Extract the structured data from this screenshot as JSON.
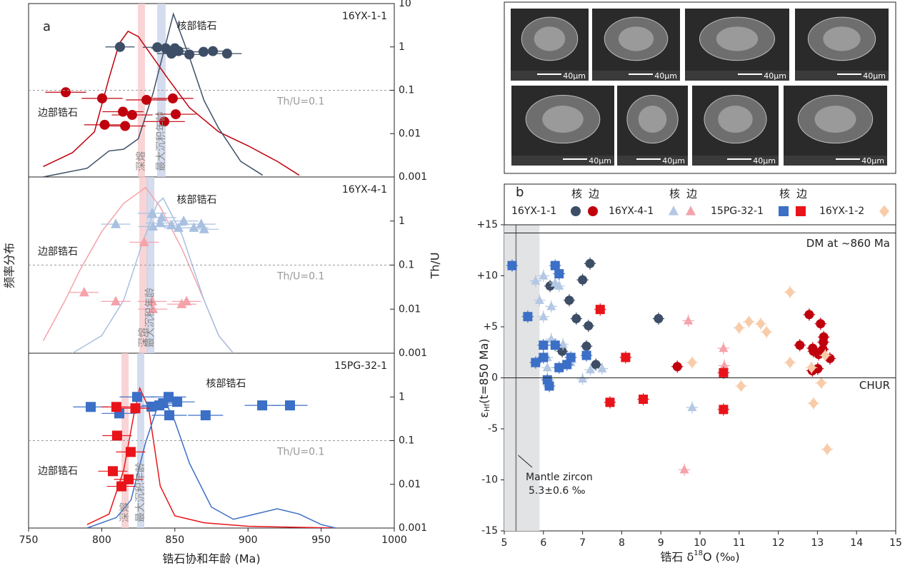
{
  "chart_data": [
    {
      "type": "density-scatter",
      "panel_label": "a",
      "sample": "16YX-1-1",
      "xlim": [
        750,
        1000
      ],
      "ylim": [
        0.001,
        10
      ],
      "yticks": [
        0.001,
        0.01,
        0.1,
        1,
        10
      ],
      "log_y": true,
      "threshold": {
        "value": 0.1,
        "label": "Th/U=0.1"
      },
      "bands": [
        {
          "range": [
            824.7,
            829.6
          ],
          "color": "#f7c9cc",
          "label": "深熔"
        },
        {
          "range": [
            837.9,
            843.7
          ],
          "color": "#c9d3ea",
          "label": "最大沉积年龄"
        }
      ],
      "curves": [
        {
          "color": "#c0000d",
          "x": [
            760,
            780,
            795,
            805,
            812,
            818,
            825,
            835,
            845,
            860,
            880,
            900,
            920,
            935
          ],
          "values": [
            0.06,
            0.14,
            0.26,
            0.57,
            0.77,
            0.84,
            0.81,
            0.69,
            0.57,
            0.4,
            0.26,
            0.18,
            0.09,
            0.01
          ]
        },
        {
          "color": "#3d4e66",
          "x": [
            760,
            790,
            805,
            815,
            825,
            835,
            849,
            860,
            870,
            880,
            895,
            910
          ],
          "values": [
            0,
            0.05,
            0.15,
            0.16,
            0.22,
            0.48,
            0.94,
            0.69,
            0.44,
            0.28,
            0.09,
            0.01
          ]
        }
      ],
      "series": [
        {
          "color": "#3d4e66",
          "marker": "circle",
          "xerr": 10,
          "x": [
            812.5,
            843.7,
            838,
            847.7,
            852.5,
            859.9,
            869.6,
            876,
            885.7,
            850
          ],
          "values": [
            1.0,
            0.93,
            0.98,
            0.7,
            0.8,
            0.67,
            0.77,
            0.8,
            0.7,
            0.93
          ]
        },
        {
          "color": "#c0000d",
          "marker": "circle",
          "xerr": 14,
          "x": [
            775.4,
            800.3,
            830.6,
            848.6,
            814.5,
            820.8,
            850.6,
            842.8,
            802,
            816
          ],
          "values": [
            0.09,
            0.065,
            0.06,
            0.065,
            0.032,
            0.027,
            0.028,
            0.019,
            0.016,
            0.015
          ]
        }
      ],
      "annotations": [
        {
          "text": "核部锆石",
          "x": 865,
          "y": 3
        },
        {
          "text": "边部锆石",
          "x": 770,
          "y": 0.03
        }
      ]
    },
    {
      "type": "density-scatter",
      "sample": "16YX-4-1",
      "xlim": [
        750,
        1000
      ],
      "ylim": [
        0.001,
        10
      ],
      "yticks": [
        0.001,
        0.01,
        0.1,
        1
      ],
      "log_y": true,
      "threshold": {
        "value": 0.1,
        "label": "Th/U=0.1"
      },
      "y_label": "频率分布",
      "y2_label": "Th/U",
      "bands": [
        {
          "range": [
            825.7,
            831.5
          ],
          "color": "#f7c9cc",
          "label": "深熔"
        },
        {
          "range": [
            830.6,
            836
          ],
          "color": "#c9d3ea",
          "label": "最大沉积年龄"
        }
      ],
      "curves": [
        {
          "color": "#f4a3ab",
          "x": [
            760,
            775,
            785,
            800,
            815,
            830,
            840,
            855,
            870,
            880,
            890
          ],
          "values": [
            0.07,
            0.3,
            0.47,
            0.69,
            0.85,
            0.94,
            0.83,
            0.59,
            0.3,
            0.1,
            0
          ]
        },
        {
          "color": "#a9c0e0",
          "x": [
            780,
            800,
            815,
            828,
            838,
            842,
            855,
            870,
            880,
            890
          ],
          "values": [
            0,
            0.1,
            0.3,
            0.63,
            0.85,
            0.88,
            0.67,
            0.3,
            0.1,
            0
          ]
        }
      ],
      "series": [
        {
          "color": "#a9c0e0",
          "marker": "triangle",
          "xerr": 10,
          "x": [
            809.6,
            834.5,
            841,
            856,
            868,
            847.7,
            835,
            852.5,
            863,
            870,
            840
          ],
          "values": [
            0.85,
            1.5,
            1.2,
            1.0,
            0.85,
            0.8,
            0.75,
            0.7,
            0.7,
            0.65,
            0.9
          ]
        },
        {
          "color": "#f4a3ab",
          "marker": "triangle",
          "xerr": 10,
          "x": [
            829,
            788,
            809.6,
            834.5,
            835,
            858,
            854.7
          ],
          "values": [
            0.33,
            0.024,
            0.015,
            0.015,
            0.01,
            0.015,
            0.013
          ]
        }
      ],
      "annotations": [
        {
          "text": "核部锆石",
          "x": 865,
          "y": 3
        },
        {
          "text": "边部锆石",
          "x": 770,
          "y": 0.2
        }
      ]
    },
    {
      "type": "density-scatter",
      "sample": "15PG-32-1",
      "xlim": [
        750,
        1000
      ],
      "xticks": [
        750,
        800,
        850,
        900,
        950,
        1000
      ],
      "ylim": [
        0.001,
        10
      ],
      "yticks": [
        0.001,
        0.01,
        0.1,
        1
      ],
      "log_y": true,
      "threshold": {
        "value": 0.1,
        "label": "Th/U=0.1"
      },
      "x_label": "锆石协和年龄 (Ma)",
      "bands": [
        {
          "range": [
            813.5,
            818.4
          ],
          "color": "#f7c9cc",
          "label": "深熔"
        },
        {
          "range": [
            824.2,
            829.1
          ],
          "color": "#c9d3ea",
          "label": "最大沉积年龄"
        }
      ],
      "curves": [
        {
          "color": "#e8141a",
          "x": [
            790,
            805,
            815,
            822,
            826,
            832,
            840,
            850,
            870,
            900,
            960
          ],
          "values": [
            0.02,
            0.08,
            0.33,
            0.65,
            0.8,
            0.69,
            0.24,
            0.07,
            0.03,
            0.01,
            0
          ]
        },
        {
          "color": "#3c6fc6",
          "x": [
            790,
            810,
            820,
            830,
            838,
            843,
            850,
            860,
            875,
            890,
            905,
            920,
            935,
            950,
            960
          ],
          "values": [
            0,
            0.06,
            0.16,
            0.49,
            0.69,
            0.73,
            0.61,
            0.37,
            0.12,
            0.05,
            0.08,
            0.11,
            0.08,
            0.02,
            0
          ]
        }
      ],
      "series": [
        {
          "color": "#3c6fc6",
          "marker": "square",
          "xerr": 12,
          "x": [
            792.5,
            824.2,
            812,
            834,
            845.7,
            851.6,
            842,
            846.2,
            871,
            909.7,
            928.7,
            839.4
          ],
          "values": [
            0.59,
            1.0,
            0.42,
            0.6,
            1.0,
            0.77,
            0.72,
            0.38,
            0.38,
            0.64,
            0.64,
            0.64
          ]
        },
        {
          "color": "#e8141a",
          "marker": "square",
          "xerr": 10,
          "x": [
            810,
            823,
            810.5,
            819.8,
            807.6,
            818.4,
            813.5
          ],
          "values": [
            0.59,
            0.55,
            0.13,
            0.055,
            0.02,
            0.013,
            0.009
          ]
        }
      ],
      "annotations": [
        {
          "text": "核部锆石",
          "x": 885,
          "y": 2
        },
        {
          "text": "边部锆石",
          "x": 770,
          "y": 0.02
        }
      ]
    },
    {
      "type": "scatter",
      "panel_label": "b",
      "xlim": [
        5,
        15
      ],
      "xticks": [
        5,
        6,
        7,
        8,
        9,
        10,
        11,
        12,
        13,
        14,
        15
      ],
      "ylim": [
        -15,
        15
      ],
      "yticks": [
        -15,
        -10,
        -5,
        0,
        {
          "value": 5,
          "label": "+5"
        },
        {
          "value": 10,
          "label": "+10"
        },
        {
          "value": 15,
          "label": "+15"
        }
      ],
      "x_label_parts": [
        "锆石 δ",
        "18",
        "O (‰)"
      ],
      "y_label_parts": [
        "ε",
        "Hf",
        "(t=850 Ma)"
      ],
      "reference_lines": [
        {
          "value": 14.2,
          "label": "DM at ~860 Ma"
        },
        {
          "value": 0,
          "label": "CHUR"
        }
      ],
      "mantle_zircon": {
        "value": 5.3,
        "err": 0.6,
        "label": "Mantle zircon",
        "label2": "5.3±0.6 ‰"
      },
      "core_label": "核",
      "rim_label": "边",
      "xerr": 0.15,
      "yerr": 0.6,
      "groups": [
        {
          "name": "16YX-1-1",
          "series": [
            {
              "color": "#3d4e66",
              "marker": "circle",
              "x": [
                7.19,
                7.0,
                6.17,
                6.66,
                6.84,
                7.15,
                7.1,
                6.48,
                7.34,
                8.94
              ],
              "values": [
                11.2,
                9.6,
                9.0,
                7.6,
                5.8,
                5.1,
                3.1,
                2.6,
                1.3,
                5.8
              ]
            },
            {
              "color": "#c0000d",
              "marker": "circle",
              "x": [
                12.79,
                12.55,
                12.88,
                13.08,
                13.16,
                13.14,
                13.32,
                13.01,
                12.87,
                12.9,
                13.15,
                9.42,
                13.03
              ],
              "values": [
                6.2,
                3.2,
                2.9,
                5.3,
                4.0,
                2.8,
                1.9,
                0.9,
                0.7,
                2.6,
                3.5,
                1.1,
                2.3
              ]
            }
          ]
        },
        {
          "name": "16YX-4-1",
          "series": [
            {
              "color": "#b4c8e4",
              "marker": "triangle",
              "x": [
                6.0,
                5.8,
                6.3,
                5.9,
                6.2,
                6.0,
                6.2,
                6.5,
                6.1,
                6.7,
                7.2,
                7.5,
                6.4,
                6.1,
                7.0,
                9.8
              ],
              "values": [
                10,
                9.5,
                9.3,
                7.6,
                7.0,
                6.0,
                3.8,
                3.3,
                2.0,
                1.5,
                0.8,
                0.9,
                9.0,
                1.0,
                -0.1,
                -2.9
              ]
            },
            {
              "color": "#f4a3ab",
              "marker": "triangle",
              "x": [
                9.7,
                10.6,
                9.6,
                10.62
              ],
              "values": [
                5.6,
                2.9,
                -9.0,
                1.2
              ]
            }
          ]
        },
        {
          "name": "15PG-32-1",
          "series": [
            {
              "color": "#3c6fc6",
              "marker": "square",
              "x": [
                5.2,
                6.3,
                6.4,
                5.6,
                6.0,
                6.3,
                6.0,
                5.8,
                6.4,
                6.1,
                6.15,
                6.7,
                7.1,
                6.6
              ],
              "values": [
                11.0,
                11.0,
                10.2,
                6.0,
                3.2,
                3.2,
                2.0,
                1.5,
                1.0,
                -0.2,
                -0.8,
                2.0,
                2.2,
                1.3
              ]
            },
            {
              "color": "#e8141a",
              "marker": "square",
              "x": [
                7.45,
                8.1,
                7.7,
                8.55,
                10.6,
                10.6
              ],
              "values": [
                6.7,
                2.0,
                -2.4,
                -2.1,
                0.5,
                -3.1
              ]
            }
          ]
        },
        {
          "name": "16YX-1-2",
          "series": [
            {
              "color": "#f8ccaa",
              "marker": "diamond",
              "x": [
                12.3,
                11.25,
                11.55,
                11.0,
                11.7,
                12.3,
                9.8,
                11.05,
                13.1,
                12.9,
                13.25,
                13.2,
                12.85
              ],
              "values": [
                8.4,
                5.5,
                5.3,
                4.9,
                4.5,
                1.5,
                1.5,
                -0.8,
                -0.5,
                -2.5,
                -7.0,
                2.2,
                1.0
              ]
            }
          ]
        }
      ]
    }
  ],
  "sem_images": [
    {
      "scale": "40μm"
    },
    {
      "scale": "40μm"
    },
    {
      "scale": "40μm"
    },
    {
      "scale": "40μm"
    },
    {
      "scale": "40μm"
    },
    {
      "scale": "40μm"
    },
    {
      "scale": "40μm"
    },
    {
      "scale": "40μm"
    }
  ]
}
